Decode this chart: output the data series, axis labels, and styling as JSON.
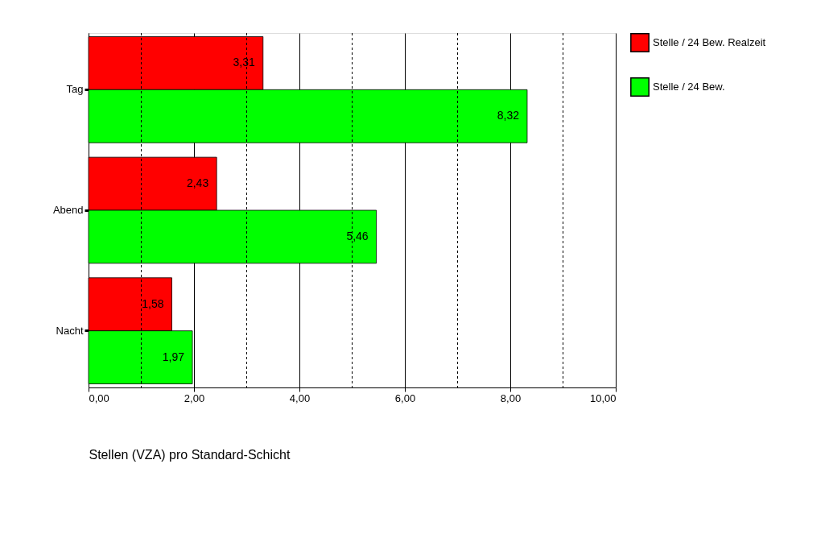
{
  "chart_data": {
    "type": "bar",
    "orientation": "horizontal",
    "xlabel": "Stellen  (VZA) pro Standard-Schicht",
    "categories": [
      "Tag",
      "Abend",
      "Nacht"
    ],
    "series": [
      {
        "name": "Stelle / 24 Bew. Realzeit",
        "color": "#ff0000",
        "values": [
          3.31,
          2.43,
          1.58
        ],
        "value_labels": [
          "3,31",
          "2,43",
          "1,58"
        ]
      },
      {
        "name": "Stelle / 24 Bew.",
        "color": "#00ff00",
        "values": [
          8.32,
          5.46,
          1.97
        ],
        "value_labels": [
          "8,32",
          "5,46",
          "1,97"
        ]
      }
    ],
    "xlim": [
      0,
      10
    ],
    "xticks": [
      {
        "value": 0,
        "label": "0,00"
      },
      {
        "value": 2,
        "label": "2,00"
      },
      {
        "value": 4,
        "label": "4,00"
      },
      {
        "value": 6,
        "label": "6,00"
      },
      {
        "value": 8,
        "label": "8,00"
      },
      {
        "value": 10,
        "label": "10,00"
      }
    ],
    "grid": "x",
    "legend": "right",
    "ref_lines": [
      {
        "axis": "x",
        "value": 1,
        "line_style": "dotted"
      },
      {
        "axis": "x",
        "value": 3,
        "line_style": "dotted"
      },
      {
        "axis": "x",
        "value": 5,
        "line_style": "dotted"
      },
      {
        "axis": "x",
        "value": 7,
        "line_style": "dotted"
      },
      {
        "axis": "x",
        "value": 9,
        "line_style": "dotted"
      }
    ]
  }
}
